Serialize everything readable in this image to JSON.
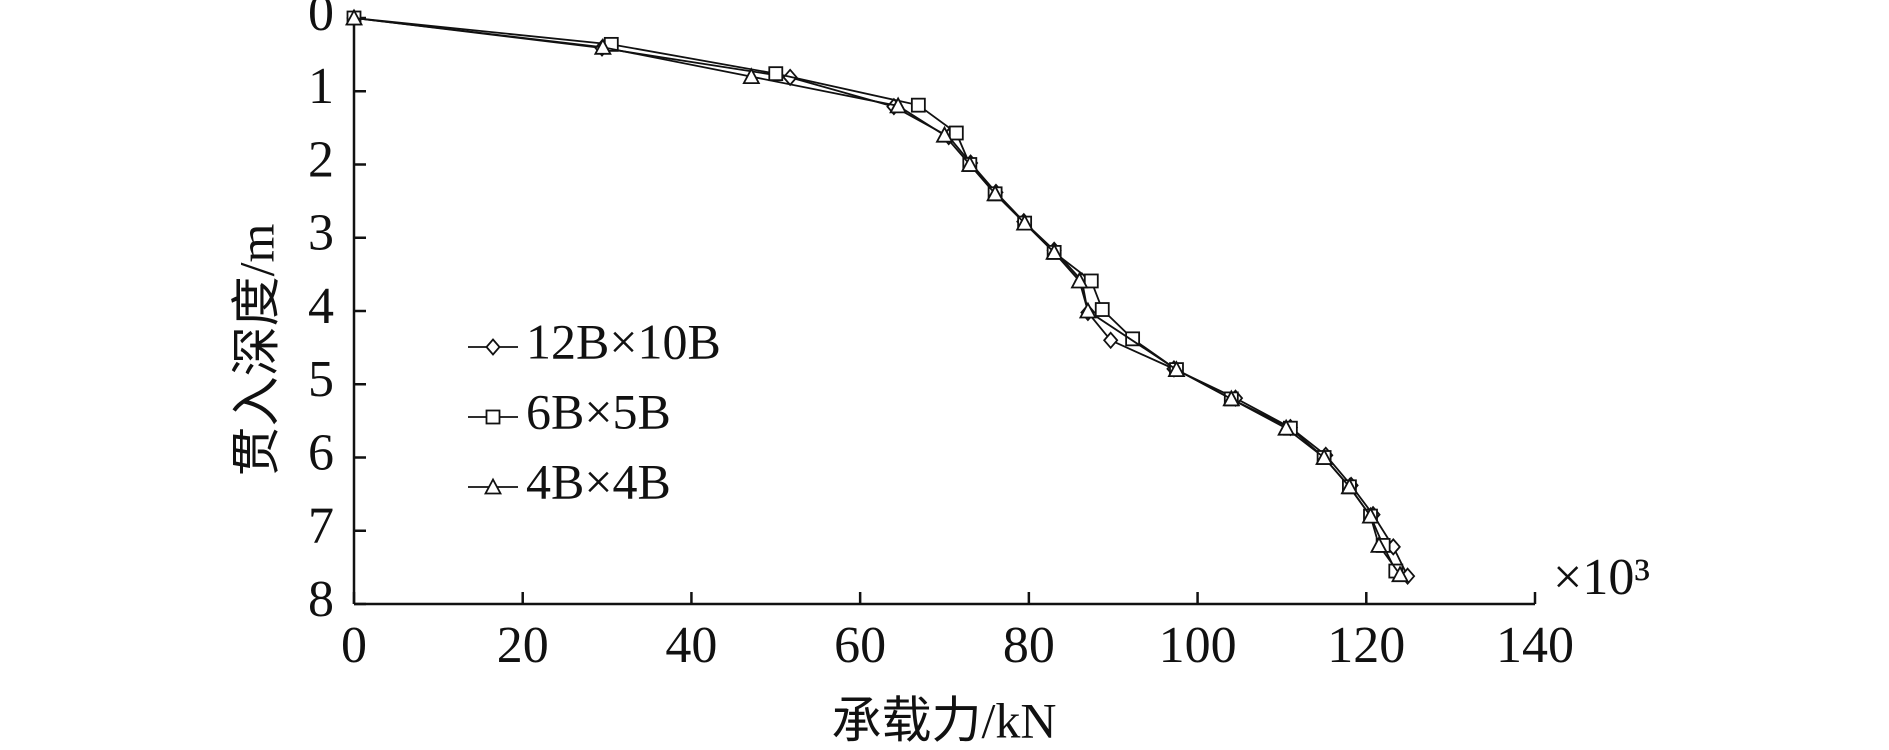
{
  "chart_data": {
    "type": "line",
    "x_label": "承载力/kN",
    "y_label": "贯入深度/m",
    "x_multiplier": "×10³",
    "xlim": [
      0,
      140
    ],
    "xticks": [
      0,
      20,
      40,
      60,
      80,
      100,
      120,
      140
    ],
    "ylim": [
      0,
      8
    ],
    "yticks": [
      0,
      1,
      2,
      3,
      4,
      5,
      6,
      7,
      8
    ],
    "y_inverted": true,
    "line_color": "#111111",
    "series": [
      {
        "name": "12B×10B",
        "marker": "diamond",
        "x": [
          0,
          29.4,
          51.7,
          64.0,
          70.5,
          73.1,
          76.1,
          79.4,
          83.0,
          86.3,
          87.0,
          89.7,
          97.2,
          104.5,
          111.0,
          115.2,
          118.2,
          120.8,
          123.2,
          124.9
        ],
        "values": [
          0,
          0.41,
          0.81,
          1.21,
          1.62,
          1.98,
          2.38,
          2.78,
          3.17,
          3.59,
          4.02,
          4.4,
          4.79,
          5.19,
          5.59,
          5.97,
          6.38,
          6.78,
          7.22,
          7.62
        ]
      },
      {
        "name": "6B×5B",
        "marker": "square",
        "x": [
          0,
          30.5,
          50.0,
          66.9,
          71.4,
          73.0,
          76.0,
          79.5,
          83.0,
          87.4,
          88.7,
          92.3,
          97.5,
          104.0,
          111.0,
          115.0,
          118.0,
          120.5,
          122.0,
          123.5
        ],
        "values": [
          0,
          0.36,
          0.76,
          1.19,
          1.57,
          2.0,
          2.4,
          2.8,
          3.2,
          3.59,
          3.98,
          4.38,
          4.8,
          5.2,
          5.6,
          6.0,
          6.4,
          6.8,
          7.2,
          7.55
        ]
      },
      {
        "name": "4B×4B",
        "marker": "triangle",
        "x": [
          0,
          29.5,
          47.1,
          64.5,
          70.0,
          73.0,
          76.0,
          79.5,
          83.0,
          86.0,
          87.0,
          97.5,
          104.0,
          110.5,
          115.0,
          118.0,
          120.5,
          121.5,
          124.0
        ],
        "values": [
          0,
          0.4,
          0.8,
          1.2,
          1.6,
          2.0,
          2.4,
          2.8,
          3.2,
          3.59,
          4.0,
          4.8,
          5.2,
          5.6,
          6.0,
          6.4,
          6.8,
          7.2,
          7.6
        ]
      }
    ]
  }
}
